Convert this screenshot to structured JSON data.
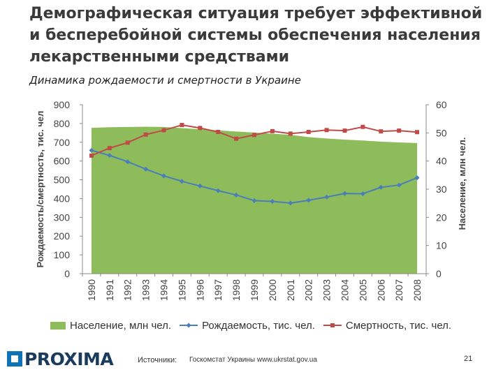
{
  "title": "Демографическая ситуация требует эффективной и бесперебойной системы обеспечения населения лекарственными средствами",
  "subtitle": "Динамика рождаемости и смертности в Украине",
  "footer": {
    "source_label": "Источники:",
    "source_text": "Госкомстат Украины   www.ukrstat.gov.ua",
    "page_number": "21",
    "logo_text": "PROXIMA"
  },
  "chart_data": {
    "type": "line",
    "categories": [
      "1990",
      "1991",
      "1992",
      "1993",
      "1994",
      "1995",
      "1996",
      "1997",
      "1998",
      "1999",
      "2000",
      "2001",
      "2002",
      "2003",
      "2004",
      "2005",
      "2006",
      "2007",
      "2008"
    ],
    "y_left": {
      "label": "Рождаемость/смертность, тис. чел",
      "ylim": [
        0,
        900
      ],
      "ticks": [
        "0",
        "100",
        "200",
        "300",
        "400",
        "500",
        "600",
        "700",
        "800",
        "900"
      ]
    },
    "y_right": {
      "label": "Население, млн чел.",
      "ylim": [
        0,
        60
      ],
      "ticks": [
        "0",
        "10",
        "20",
        "30",
        "40",
        "50",
        "60"
      ]
    },
    "series": [
      {
        "name": "Население, млн чел.",
        "type": "area",
        "axis": "right",
        "color": "#8fbc5a",
        "values": [
          51.8,
          52.0,
          52.1,
          52.2,
          52.1,
          51.7,
          51.3,
          50.9,
          50.5,
          50.1,
          49.7,
          49.3,
          48.5,
          48.0,
          47.6,
          47.3,
          46.9,
          46.6,
          46.4
        ]
      },
      {
        "name": "Рождаемость, тис. чел.",
        "type": "line",
        "axis": "left",
        "color": "#4a7ebb",
        "values": [
          657,
          630,
          596,
          557,
          521,
          492,
          467,
          442,
          419,
          389,
          385,
          376,
          391,
          408,
          427,
          426,
          460,
          472,
          511
        ]
      },
      {
        "name": "Смертность, тис. чел.",
        "type": "line",
        "axis": "left",
        "color": "#be4b48",
        "values": [
          629,
          669,
          698,
          741,
          764,
          792,
          776,
          755,
          719,
          739,
          759,
          746,
          755,
          765,
          762,
          782,
          758,
          762,
          754
        ]
      }
    ],
    "legend_position": "bottom",
    "grid": false
  }
}
